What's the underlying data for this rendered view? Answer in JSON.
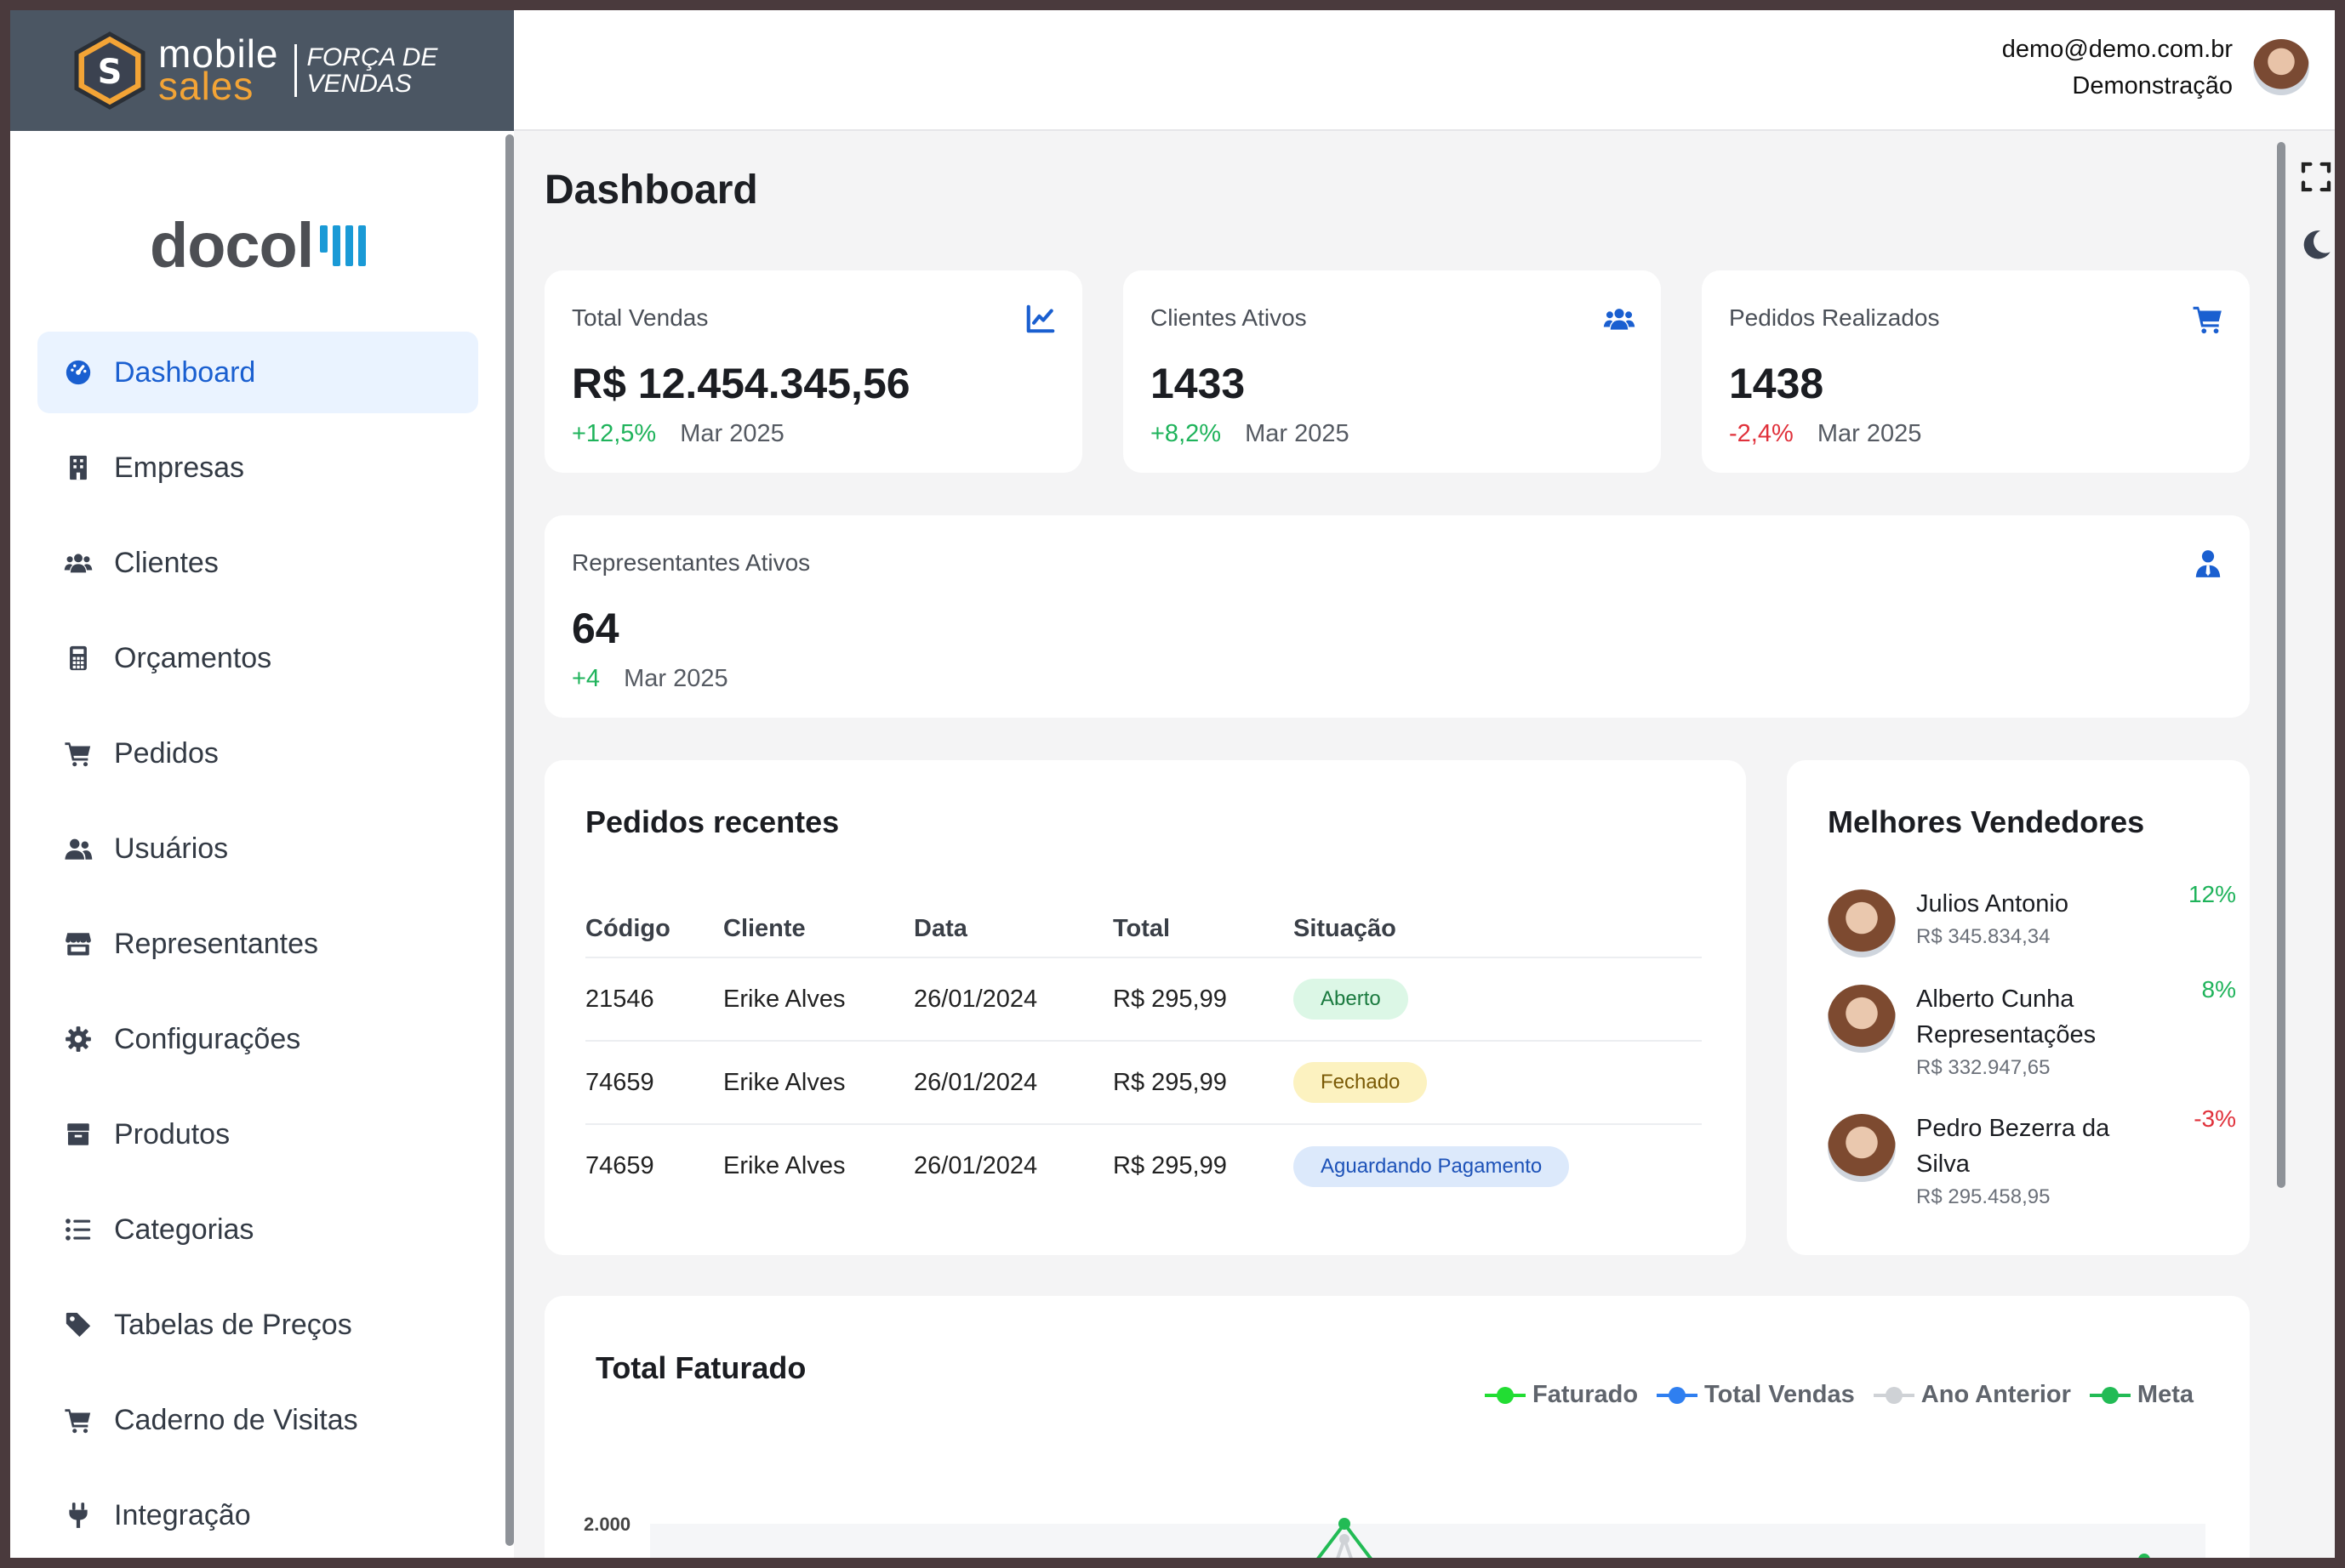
{
  "brand": {
    "mobile": "mobile",
    "sales": "sales",
    "tagline_1": "FORÇA DE",
    "tagline_2": "VENDAS"
  },
  "user": {
    "email": "demo@demo.com.br",
    "company": "Demonstração"
  },
  "sidebar": {
    "logo_text": "docol",
    "items": [
      {
        "label": "Dashboard",
        "icon": "dashboard-icon",
        "active": true
      },
      {
        "label": "Empresas",
        "icon": "building-icon"
      },
      {
        "label": "Clientes",
        "icon": "users-icon"
      },
      {
        "label": "Orçamentos",
        "icon": "calculator-icon"
      },
      {
        "label": "Pedidos",
        "icon": "cart-icon"
      },
      {
        "label": "Usuários",
        "icon": "user-group-icon"
      },
      {
        "label": "Representantes",
        "icon": "store-icon"
      },
      {
        "label": "Configurações",
        "icon": "gear-icon"
      },
      {
        "label": "Produtos",
        "icon": "box-icon"
      },
      {
        "label": "Categorias",
        "icon": "list-icon"
      },
      {
        "label": "Tabelas de Preços",
        "icon": "tag-icon"
      },
      {
        "label": "Caderno de Visitas",
        "icon": "cart-icon"
      },
      {
        "label": "Integração",
        "icon": "plug-icon"
      }
    ]
  },
  "page": {
    "title": "Dashboard"
  },
  "kpis": [
    {
      "label": "Total Vendas",
      "value": "R$ 12.454.345,56",
      "delta": "+12,5%",
      "period": "Mar 2025",
      "trend": "up",
      "icon": "chart-line-icon"
    },
    {
      "label": "Clientes Ativos",
      "value": "1433",
      "delta": "+8,2%",
      "period": "Mar 2025",
      "trend": "up",
      "icon": "users-icon"
    },
    {
      "label": "Pedidos Realizados",
      "value": "1438",
      "delta": "-2,4%",
      "period": "Mar 2025",
      "trend": "down",
      "icon": "cart-icon"
    },
    {
      "label": "Representantes Ativos",
      "value": "64",
      "delta": "+4",
      "period": "Mar 2025",
      "trend": "up",
      "icon": "user-tie-icon"
    }
  ],
  "orders": {
    "title": "Pedidos recentes",
    "columns": [
      "Código",
      "Cliente",
      "Data",
      "Total",
      "Situação"
    ],
    "rows": [
      {
        "code": "21546",
        "client": "Erike Alves",
        "date": "26/01/2024",
        "total": "R$ 295,99",
        "status": "Aberto",
        "status_type": "open"
      },
      {
        "code": "74659",
        "client": "Erike Alves",
        "date": "26/01/2024",
        "total": "R$ 295,99",
        "status": "Fechado",
        "status_type": "closed"
      },
      {
        "code": "74659",
        "client": "Erike Alves",
        "date": "26/01/2024",
        "total": "R$ 295,99",
        "status": "Aguardando Pagamento",
        "status_type": "waiting"
      }
    ]
  },
  "sellers": {
    "title": "Melhores Vendedores",
    "items": [
      {
        "name": "Julios Antonio",
        "amount": "R$ 345.834,34",
        "pct": "12%",
        "trend": "up"
      },
      {
        "name": "Alberto Cunha Representações",
        "amount": "R$ 332.947,65",
        "pct": "8%",
        "trend": "up"
      },
      {
        "name": "Pedro Bezerra da Silva",
        "amount": "R$ 295.458,95",
        "pct": "-3%",
        "trend": "down"
      }
    ]
  },
  "revenue_chart": {
    "title": "Total Faturado",
    "legend": [
      {
        "name": "Faturado",
        "color": "#22dd33"
      },
      {
        "name": "Total Vendas",
        "color": "#2f7ff0"
      },
      {
        "name": "Ano Anterior",
        "color": "#cfd2d6"
      },
      {
        "name": "Meta",
        "color": "#22bb55"
      }
    ],
    "y_tick_top": "2.000"
  },
  "colors": {
    "accent": "#1a5fd0",
    "positive": "#1fb35b",
    "negative": "#e0313b",
    "brand_header": "#4b5663",
    "brand_orange": "#f3a436"
  }
}
